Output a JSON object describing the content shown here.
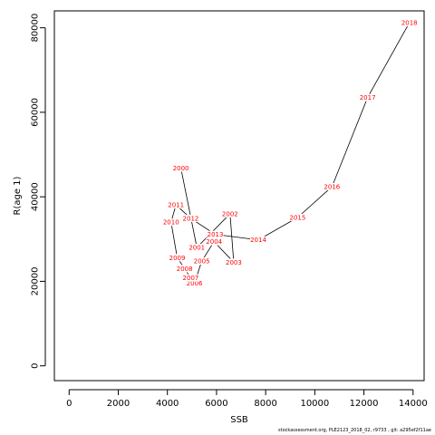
{
  "chart_data": {
    "type": "scatter",
    "connected": true,
    "xlabel": "SSB",
    "ylabel": "R(age 1)",
    "xlim": [
      -600,
      14450
    ],
    "ylim": [
      -3500,
      84000
    ],
    "xticks": [
      0,
      2000,
      4000,
      6000,
      8000,
      10000,
      12000,
      14000
    ],
    "yticks": [
      0,
      20000,
      40000,
      60000,
      80000
    ],
    "grid": false,
    "line_color": "#000000",
    "label_color": "#ff0000",
    "points": [
      {
        "label": "2000",
        "x": 4550,
        "y": 46800
      },
      {
        "label": "2001",
        "x": 5200,
        "y": 28000
      },
      {
        "label": "2002",
        "x": 6550,
        "y": 36000
      },
      {
        "label": "2003",
        "x": 6700,
        "y": 24500
      },
      {
        "label": "2004",
        "x": 5900,
        "y": 29400
      },
      {
        "label": "2005",
        "x": 5400,
        "y": 24800
      },
      {
        "label": "2006",
        "x": 5100,
        "y": 19500
      },
      {
        "label": "2007",
        "x": 4950,
        "y": 20800
      },
      {
        "label": "2008",
        "x": 4700,
        "y": 23000
      },
      {
        "label": "2009",
        "x": 4400,
        "y": 25600
      },
      {
        "label": "2010",
        "x": 4150,
        "y": 34000
      },
      {
        "label": "2011",
        "x": 4350,
        "y": 38100
      },
      {
        "label": "2012",
        "x": 4950,
        "y": 34900
      },
      {
        "label": "2013",
        "x": 5950,
        "y": 31100
      },
      {
        "label": "2014",
        "x": 7700,
        "y": 29800
      },
      {
        "label": "2015",
        "x": 9300,
        "y": 35100
      },
      {
        "label": "2016",
        "x": 10700,
        "y": 42400
      },
      {
        "label": "2017",
        "x": 12150,
        "y": 63500
      },
      {
        "label": "2018",
        "x": 13850,
        "y": 81200
      }
    ]
  },
  "footer": {
    "text": "stockassessment.org, PLE2123_2018_02, r9733 , git: a295ef2f11ae"
  }
}
